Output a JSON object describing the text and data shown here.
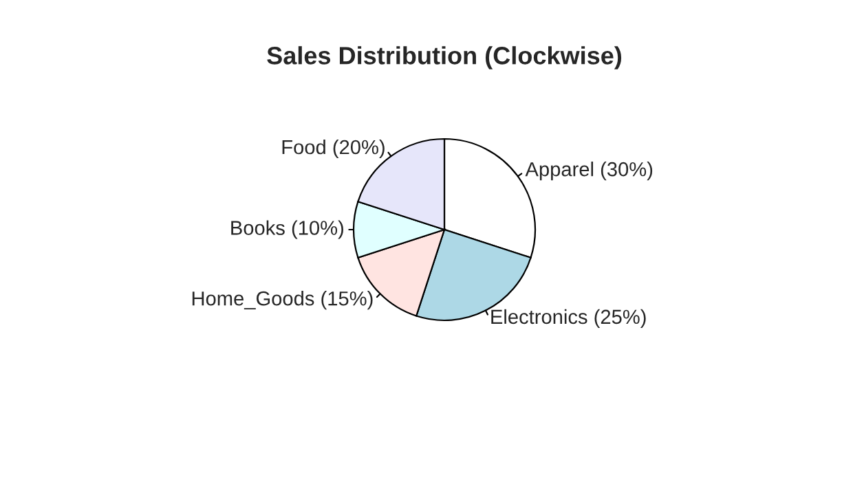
{
  "chart_data": {
    "type": "pie",
    "title": "Sales Distribution (Clockwise)",
    "categories": [
      "Apparel (30%)",
      "Electronics (25%)",
      "Home_Goods (15%)",
      "Books (10%)",
      "Food (20%)"
    ],
    "values": [
      30,
      25,
      15,
      10,
      20
    ],
    "colors": [
      "#ffffff",
      "#add8e6",
      "#ffe4e1",
      "#e0ffff",
      "#e6e6fa"
    ]
  }
}
